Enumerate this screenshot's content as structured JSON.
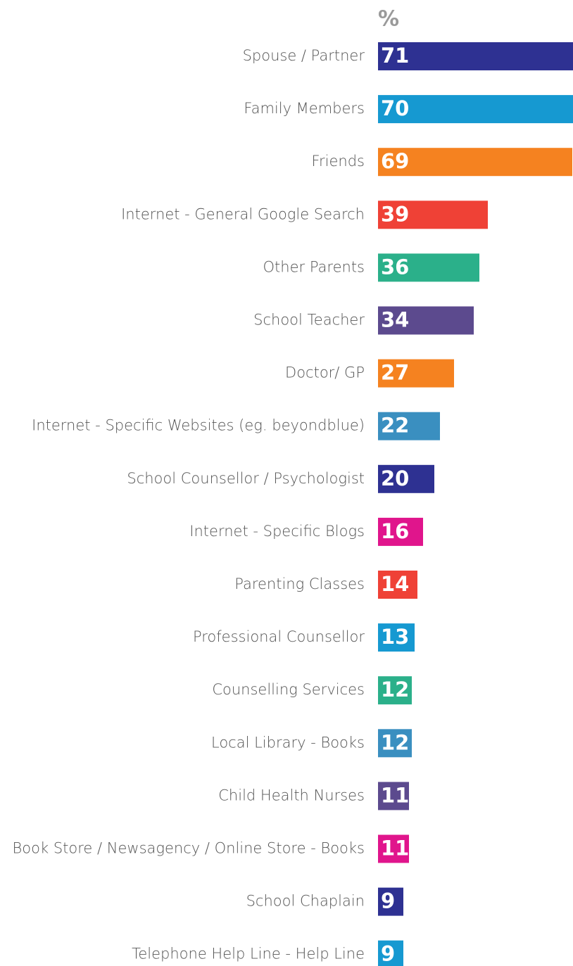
{
  "chart_data": {
    "type": "hbar",
    "title": "%",
    "categories": [
      "Spouse / Partner",
      "Family Members",
      "Friends",
      "Internet - General Google Search",
      "Other Parents",
      "School Teacher",
      "Doctor/ GP",
      "Internet - Specific Websites (eg. beyondblue)",
      "School Counsellor / Psychologist",
      "Internet - Specific Blogs",
      "Parenting Classes",
      "Professional Counsellor",
      "Counselling Services",
      "Local Library - Books",
      "Child Health Nurses",
      "Book Store / Newsagency / Online Store - Books",
      "School Chaplain",
      "Telephone Help Line - Help Line"
    ],
    "values": [
      71,
      70,
      69,
      39,
      36,
      34,
      27,
      22,
      20,
      16,
      14,
      13,
      12,
      12,
      11,
      11,
      9,
      9
    ],
    "colors": [
      "#2e3192",
      "#1699d1",
      "#f58220",
      "#ef4136",
      "#2bb08a",
      "#5c4a8e",
      "#f58220",
      "#3a8fc0",
      "#2e3192",
      "#e0158c",
      "#ef4136",
      "#1699d1",
      "#2bb08a",
      "#3a8fc0",
      "#5c4a8e",
      "#e0158c",
      "#2e3192",
      "#1699d1"
    ]
  }
}
